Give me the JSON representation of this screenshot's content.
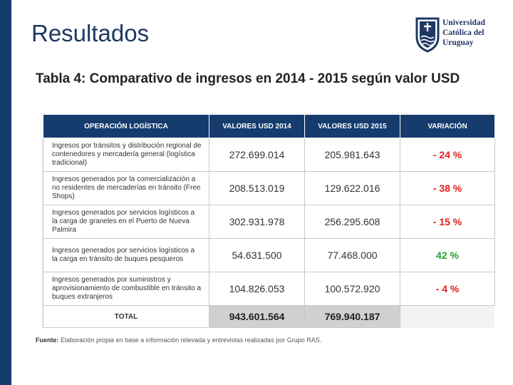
{
  "slide": {
    "title": "Resultados"
  },
  "logo": {
    "lines": [
      "Universidad",
      "Católica del",
      "Uruguay"
    ]
  },
  "table": {
    "title": "Tabla 4: Comparativo de ingresos en 2014 - 2015 según valor USD",
    "headers": [
      "OPERACIÓN LOGÍSTICA",
      "VALORES USD 2014",
      "VALORES USD 2015",
      "VARIACIÓN"
    ],
    "rows": [
      {
        "operation": "Ingresos por tránsitos y distribución regional de contenedores y mercadería general (logística tradicional)",
        "v2014": "272.699.014",
        "v2015": "205.981.643",
        "variation": "- 24 %"
      },
      {
        "operation": "Ingresos generados por la comercialización a no residentes de mercaderías en tránsito (Free Shops)",
        "v2014": "208.513.019",
        "v2015": "129.622.016",
        "variation": "- 38 %"
      },
      {
        "operation": "Ingresos generados por servicios logísticos a la carga de graneles en el Puerto de Nueva Palmira",
        "v2014": "302.931.978",
        "v2015": "256.295.608",
        "variation": "- 15 %"
      },
      {
        "operation": "Ingresos generados por servicios logísticos a la carga en tránsito de buques pesqueros",
        "v2014": "54.631.500",
        "v2015": "77.468.000",
        "variation": "42 %"
      },
      {
        "operation": "Ingresos generados por suministros y aprovisionamiento de combustible en tránsito a buques extranjeros",
        "v2014": "104.826.053",
        "v2015": "100.572.920",
        "variation": "- 4 %"
      }
    ],
    "total": {
      "label": "TOTAL",
      "v2014": "943.601.564",
      "v2015": "769.940.187"
    }
  },
  "source": {
    "label": "Fuente:",
    "text": "Elaboración propia en base a información relevada y entrevistas realizadas por Grupo RAS."
  },
  "colors": {
    "brand": "#163c6e",
    "negative": "#e02020",
    "positive": "#22a038"
  },
  "icons": [
    "ucu-crest-icon"
  ]
}
